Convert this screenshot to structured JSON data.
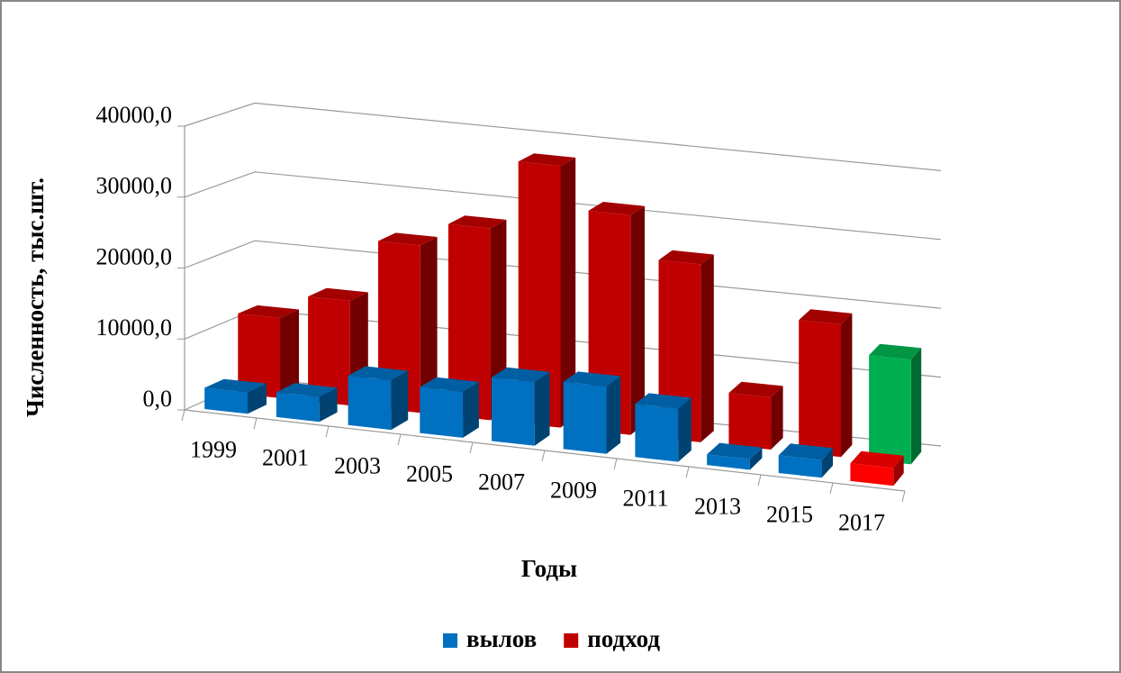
{
  "chart_data": {
    "type": "bar3d",
    "categories": [
      "1999",
      "2001",
      "2003",
      "2005",
      "2007",
      "2009",
      "2011",
      "2013",
      "2015",
      "2017"
    ],
    "series": [
      {
        "name": "вылов",
        "color": "#0070c0",
        "colors": [
          "#0070c0",
          "#0070c0",
          "#0070c0",
          "#0070c0",
          "#0070c0",
          "#0070c0",
          "#0070c0",
          "#0070c0",
          "#0070c0",
          "#ff0000"
        ],
        "values": [
          3000,
          3500,
          7000,
          6500,
          9000,
          9500,
          7500,
          1500,
          2500,
          2500
        ]
      },
      {
        "name": "подход",
        "color": "#c00000",
        "colors": [
          "#c00000",
          "#c00000",
          "#c00000",
          "#c00000",
          "#c00000",
          "#c00000",
          "#c00000",
          "#c00000",
          "#c00000",
          "#00b050"
        ],
        "values": [
          11500,
          15000,
          24000,
          27500,
          37500,
          31500,
          25500,
          7500,
          19000,
          15000
        ]
      }
    ],
    "ylabel": "Численность, тыс.шт.",
    "xlabel": "Годы",
    "ylim": [
      0,
      40000
    ],
    "yticks": [
      {
        "value": 0,
        "label": "0,0"
      },
      {
        "value": 10000,
        "label": "10000,0"
      },
      {
        "value": 20000,
        "label": "20000,0"
      },
      {
        "value": 30000,
        "label": "30000,0"
      },
      {
        "value": 40000,
        "label": "40000,0"
      }
    ],
    "grid": true,
    "legend": "bottom"
  }
}
